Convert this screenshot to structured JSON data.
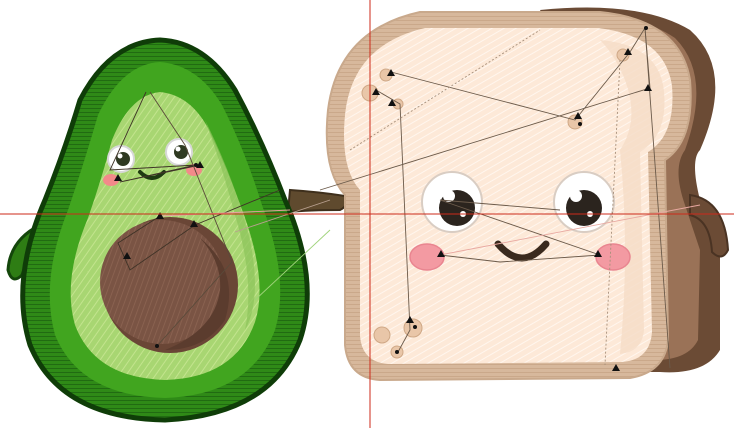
{
  "canvas": {
    "background": "#ffffff",
    "crosshair_color": "#cc2a1a"
  },
  "design": {
    "objects": [
      {
        "name": "avocado",
        "colors": {
          "outer": "#1d6b12",
          "mid": "#3c9d1c",
          "flesh": "#a8d672",
          "flesh_light": "#c9e79a",
          "pit": "#7a5444",
          "pit_dark": "#5a3b2e",
          "cheek": "#f28a8a"
        }
      },
      {
        "name": "toast",
        "colors": {
          "crust": "#d7b89c",
          "crust_dark": "#6b4b35",
          "bread": "#fde9d8",
          "bread_light": "#fff4ea",
          "cheek": "#f39aa2",
          "dot": "#e6c4a8"
        }
      }
    ],
    "stitch_path_color": "#6b5a4a",
    "stitch_path_light": "#c9a98c"
  }
}
